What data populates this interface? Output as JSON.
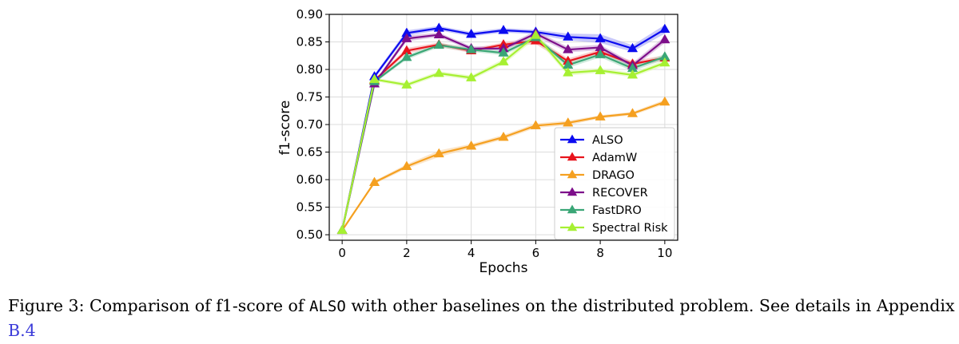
{
  "chart_data": {
    "type": "line",
    "title": "",
    "xlabel": "Epochs",
    "ylabel": "f1-score",
    "xlim": [
      -0.4,
      10.4
    ],
    "ylim": [
      0.49,
      0.9
    ],
    "xticks": [
      0,
      2,
      4,
      6,
      8,
      10
    ],
    "yticks": [
      0.5,
      0.55,
      0.6,
      0.65,
      0.7,
      0.75,
      0.8,
      0.85,
      0.9
    ],
    "xtick_labels": [
      "0",
      "2",
      "4",
      "6",
      "8",
      "10"
    ],
    "ytick_labels": [
      "0.50",
      "0.55",
      "0.60",
      "0.65",
      "0.70",
      "0.75",
      "0.80",
      "0.85",
      "0.90"
    ],
    "grid": true,
    "legend_position": "lower-right",
    "x": [
      0,
      1,
      2,
      3,
      4,
      5,
      6,
      7,
      8,
      9,
      10
    ],
    "series": [
      {
        "name": "ALSO",
        "color": "#0b0bf0",
        "band_color": "#9a9af5",
        "values": [
          0.508,
          0.787,
          0.866,
          0.875,
          0.864,
          0.871,
          0.868,
          0.859,
          0.856,
          0.838,
          0.873
        ],
        "band": [
          0,
          0.004,
          0.005,
          0.004,
          0.004,
          0.004,
          0.004,
          0.006,
          0.008,
          0.006,
          0.008
        ]
      },
      {
        "name": "AdamW",
        "color": "#e8141c",
        "band_color": "#f5a3a3",
        "values": [
          0.508,
          0.78,
          0.834,
          0.845,
          0.834,
          0.845,
          0.852,
          0.815,
          0.832,
          0.81,
          0.821
        ],
        "band": [
          0,
          0.003,
          0.005,
          0.004,
          0.004,
          0.004,
          0.006,
          0.005,
          0.005,
          0.005,
          0.005
        ]
      },
      {
        "name": "DRAGO",
        "color": "#f5a020",
        "band_color": "#f8d2a0",
        "values": [
          0.508,
          0.595,
          0.624,
          0.647,
          0.661,
          0.677,
          0.698,
          0.703,
          0.714,
          0.72,
          0.741
        ],
        "band": [
          0,
          0.003,
          0.004,
          0.006,
          0.004,
          0.004,
          0.004,
          0.004,
          0.003,
          0.003,
          0.004
        ]
      },
      {
        "name": "RECOVER",
        "color": "#7d0e8a",
        "band_color": "#c89ad0",
        "values": [
          0.508,
          0.774,
          0.856,
          0.863,
          0.838,
          0.838,
          0.865,
          0.836,
          0.84,
          0.807,
          0.854
        ],
        "band": [
          0,
          0.003,
          0.005,
          0.004,
          0.004,
          0.004,
          0.005,
          0.005,
          0.005,
          0.005,
          0.006
        ]
      },
      {
        "name": "FastDRO",
        "color": "#3aa676",
        "band_color": "#a5d8bd",
        "values": [
          0.508,
          0.778,
          0.822,
          0.844,
          0.836,
          0.83,
          0.858,
          0.808,
          0.827,
          0.802,
          0.823
        ],
        "band": [
          0,
          0.003,
          0.004,
          0.004,
          0.004,
          0.004,
          0.005,
          0.005,
          0.005,
          0.005,
          0.005
        ]
      },
      {
        "name": "Spectral Risk",
        "color": "#a6f032",
        "band_color": "#dcf8a8",
        "values": [
          0.508,
          0.782,
          0.772,
          0.793,
          0.785,
          0.814,
          0.862,
          0.794,
          0.798,
          0.79,
          0.812
        ],
        "band": [
          0,
          0.003,
          0.004,
          0.004,
          0.004,
          0.005,
          0.006,
          0.005,
          0.004,
          0.004,
          0.005
        ]
      }
    ]
  },
  "caption": {
    "prefix": "Figure 3: Comparison of f1-score of",
    "method": "ALSO",
    "suffix": "with other baselines on the distributed problem. See details in Appendix",
    "ref": "B.4"
  }
}
